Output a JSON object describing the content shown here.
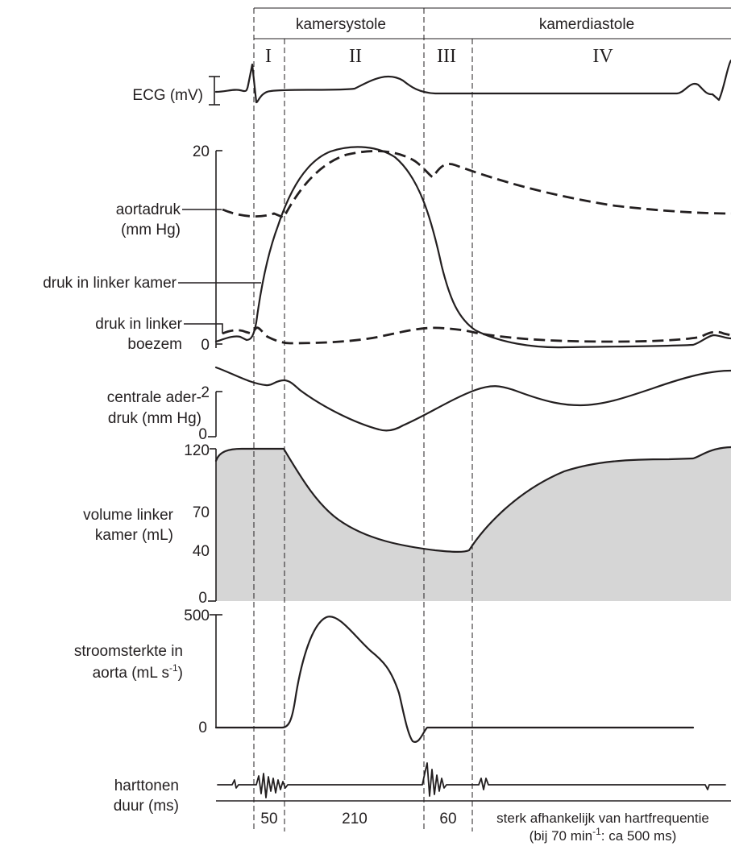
{
  "phases": {
    "systole": "kamersystole",
    "diastole": "kamerdiastole",
    "roman": [
      "I",
      "II",
      "III",
      "IV"
    ]
  },
  "labels": {
    "ecg": "ECG  (mV)",
    "aorta_pressure": [
      "aortadruk",
      "(mm Hg)"
    ],
    "ventricle_pressure": "druk in linker kamer",
    "atrium_pressure": [
      "druk in linker",
      "boezem"
    ],
    "central_venous": [
      "centrale ader-",
      "druk (mm Hg)"
    ],
    "volume": [
      "volume linker",
      "kamer (mL)"
    ],
    "flow": [
      "stroomsterkte in",
      "aorta (mL s",
      "-1",
      ")"
    ],
    "heart_sounds": [
      "harttonen",
      "duur (ms)"
    ]
  },
  "ticks": {
    "pressure": [
      "20",
      "0"
    ],
    "central": [
      "2",
      "0"
    ],
    "volume": [
      "120",
      "70",
      "40",
      "0"
    ],
    "flow": [
      "500",
      "0"
    ]
  },
  "durations": {
    "values": [
      "50",
      "210",
      "60"
    ],
    "note_line1": "sterk afhankelijk van hartfrequentie",
    "note_line2_pre": "(bij 70 min",
    "note_line2_sup": "-1",
    "note_line2_post": ": ca 500 ms)"
  },
  "colors": {
    "ink": "#231f20",
    "volume_fill": "#d6d6d6"
  }
}
